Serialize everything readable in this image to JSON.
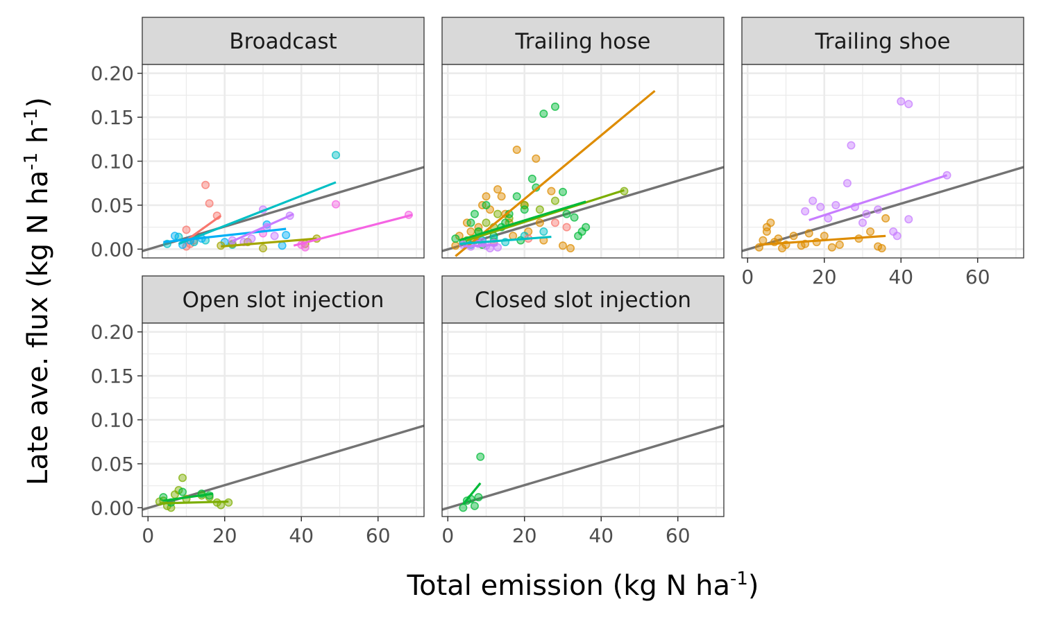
{
  "chart_data": {
    "type": "scatter",
    "xlabel": "Total emission (kg N ha-1)",
    "ylabel": "Late ave. flux (kg N ha-1 h-1)",
    "xlabel_parts": {
      "main": "Total emission (kg N ha",
      "sup": "-1",
      "close": ")"
    },
    "ylabel_parts": {
      "main": "Late ave. flux (kg N ha",
      "sup1": "-1",
      "mid": " h",
      "sup2": "-1",
      "close": ")"
    },
    "xlim": [
      -1.5,
      72
    ],
    "ylim": [
      -0.01,
      0.21
    ],
    "xticks": [
      0,
      20,
      40,
      60
    ],
    "xtick_labels": [
      "0",
      "20",
      "40",
      "60"
    ],
    "yticks": [
      0,
      0.05,
      0.1,
      0.15,
      0.2
    ],
    "ytick_labels": [
      "0.00",
      "0.05",
      "0.10",
      "0.15",
      "0.20"
    ],
    "grid": true,
    "reference_line": {
      "intercept": -0.0003,
      "slope": 0.0013,
      "color": "#737373"
    },
    "colors": {
      "red": "#F8766D",
      "orange": "#DE8C00",
      "olive": "#A3A500",
      "lime": "#7CAE00",
      "green": "#00BA38",
      "teal": "#00BFC4",
      "blue": "#00B0F6",
      "violet": "#C77CFF",
      "pink": "#F564E3"
    },
    "panels": [
      {
        "title": "Broadcast",
        "series": [
          {
            "color": "red",
            "points": [
              [
                10,
                0.022
              ],
              [
                15,
                0.073
              ],
              [
                16,
                0.052
              ],
              [
                18,
                0.038
              ],
              [
                11,
                0.006
              ],
              [
                10,
                0.003
              ],
              [
                12,
                0.01
              ]
            ],
            "fit": [
              [
                10,
                0.01
              ],
              [
                19,
                0.038
              ]
            ]
          },
          {
            "color": "teal",
            "points": [
              [
                5,
                0.006
              ],
              [
                8,
                0.014
              ],
              [
                12,
                0.008
              ],
              [
                15,
                0.01
              ],
              [
                22,
                0.005
              ],
              [
                49,
                0.107
              ]
            ],
            "fit": [
              [
                8,
                0.006
              ],
              [
                49,
                0.076
              ]
            ]
          },
          {
            "color": "blue",
            "points": [
              [
                7,
                0.015
              ],
              [
                9,
                0.005
              ],
              [
                14,
                0.012
              ],
              [
                20,
                0.008
              ],
              [
                31,
                0.028
              ],
              [
                35,
                0.004
              ],
              [
                36,
                0.016
              ],
              [
                11,
                0.01
              ]
            ],
            "fit": [
              [
                4,
                0.008
              ],
              [
                36,
                0.023
              ]
            ]
          },
          {
            "color": "olive",
            "points": [
              [
                19,
                0.004
              ],
              [
                22,
                0.006
              ],
              [
                26,
                0.008
              ],
              [
                30,
                0.001
              ],
              [
                41,
                0.006
              ],
              [
                44,
                0.012
              ]
            ],
            "fit": [
              [
                19,
                0.003
              ],
              [
                44,
                0.012
              ]
            ]
          },
          {
            "color": "violet",
            "points": [
              [
                22,
                0.01
              ],
              [
                27,
                0.012
              ],
              [
                30,
                0.045
              ],
              [
                31,
                0.025
              ],
              [
                33,
                0.015
              ],
              [
                37,
                0.038
              ],
              [
                25,
                0.008
              ]
            ],
            "fit": [
              [
                22,
                0.009
              ],
              [
                38,
                0.04
              ]
            ]
          },
          {
            "color": "pink",
            "points": [
              [
                30,
                0.018
              ],
              [
                40,
                0.005
              ],
              [
                41,
                0.002
              ],
              [
                49,
                0.051
              ],
              [
                68,
                0.039
              ]
            ],
            "fit": [
              [
                38,
                0.004
              ],
              [
                69,
                0.039
              ]
            ]
          }
        ]
      },
      {
        "title": "Trailing hose",
        "series": [
          {
            "color": "orange",
            "points": [
              [
                2,
                0.004
              ],
              [
                3,
                0.015
              ],
              [
                5,
                0.03
              ],
              [
                6,
                0.02
              ],
              [
                7,
                0.01
              ],
              [
                8,
                0.025
              ],
              [
                9,
                0.05
              ],
              [
                10,
                0.06
              ],
              [
                11,
                0.045
              ],
              [
                13,
                0.068
              ],
              [
                14,
                0.06
              ],
              [
                15,
                0.04
              ],
              [
                16,
                0.03
              ],
              [
                18,
                0.113
              ],
              [
                20,
                0.05
              ],
              [
                21,
                0.02
              ],
              [
                23,
                0.103
              ],
              [
                24,
                0.03
              ],
              [
                25,
                0.01
              ],
              [
                27,
                0.066
              ],
              [
                30,
                0.004
              ],
              [
                32,
                0.001
              ],
              [
                12,
                0.008
              ],
              [
                17,
                0.015
              ]
            ],
            "fit": [
              [
                2,
                -0.008
              ],
              [
                54,
                0.18
              ]
            ]
          },
          {
            "color": "lime",
            "points": [
              [
                5,
                0.01
              ],
              [
                8,
                0.02
              ],
              [
                10,
                0.03
              ],
              [
                13,
                0.04
              ],
              [
                16,
                0.035
              ],
              [
                20,
                0.05
              ],
              [
                24,
                0.045
              ],
              [
                28,
                0.055
              ],
              [
                46,
                0.066
              ],
              [
                12,
                0.025
              ]
            ],
            "fit": [
              [
                5,
                0.01
              ],
              [
                46,
                0.067
              ]
            ]
          },
          {
            "color": "green",
            "points": [
              [
                2,
                0.012
              ],
              [
                4,
                0.008
              ],
              [
                6,
                0.03
              ],
              [
                8,
                0.02
              ],
              [
                10,
                0.05
              ],
              [
                12,
                0.015
              ],
              [
                14,
                0.025
              ],
              [
                15,
                0.03
              ],
              [
                16,
                0.04
              ],
              [
                18,
                0.06
              ],
              [
                20,
                0.045
              ],
              [
                22,
                0.08
              ],
              [
                23,
                0.07
              ],
              [
                25,
                0.154
              ],
              [
                28,
                0.162
              ],
              [
                30,
                0.065
              ],
              [
                31,
                0.04
              ],
              [
                33,
                0.036
              ],
              [
                34,
                0.015
              ],
              [
                35,
                0.02
              ],
              [
                36,
                0.025
              ],
              [
                9,
                0.005
              ],
              [
                7,
                0.04
              ],
              [
                19,
                0.01
              ]
            ],
            "fit": [
              [
                3,
                0.01
              ],
              [
                36,
                0.054
              ]
            ]
          },
          {
            "color": "teal",
            "points": [
              [
                6,
                0.005
              ],
              [
                9,
                0.01
              ],
              [
                12,
                0.012
              ],
              [
                15,
                0.008
              ],
              [
                20,
                0.015
              ],
              [
                25,
                0.02
              ]
            ],
            "fit": [
              [
                3,
                0.006
              ],
              [
                27,
                0.014
              ]
            ]
          },
          {
            "color": "violet",
            "points": [
              [
                4,
                0.005
              ],
              [
                6,
                0.003
              ],
              [
                8,
                0.006
              ],
              [
                10,
                0.004
              ],
              [
                12,
                0.007
              ],
              [
                13,
                0.002
              ],
              [
                11,
                0.001
              ],
              [
                9,
                0.008
              ]
            ],
            "fit": [
              [
                4,
                0.003
              ],
              [
                13,
                0.005
              ]
            ]
          },
          {
            "color": "red",
            "points": [
              [
                21,
                0.012
              ],
              [
                28,
                0.03
              ],
              [
                31,
                0.025
              ]
            ],
            "fit": null
          }
        ]
      },
      {
        "title": "Trailing shoe",
        "series": [
          {
            "color": "orange",
            "points": [
              [
                3,
                0.002
              ],
              [
                4,
                0.01
              ],
              [
                5,
                0.02
              ],
              [
                6,
                0.03
              ],
              [
                7,
                0.008
              ],
              [
                8,
                0.012
              ],
              [
                10,
                0.005
              ],
              [
                12,
                0.015
              ],
              [
                14,
                0.004
              ],
              [
                16,
                0.018
              ],
              [
                18,
                0.008
              ],
              [
                20,
                0.015
              ],
              [
                22,
                0.002
              ],
              [
                24,
                0.005
              ],
              [
                29,
                0.012
              ],
              [
                32,
                0.02
              ],
              [
                34,
                0.003
              ],
              [
                35,
                0.001
              ],
              [
                36,
                0.035
              ],
              [
                9,
                0.001
              ],
              [
                5,
                0.025
              ],
              [
                15,
                0.006
              ]
            ],
            "fit": [
              [
                3,
                0.005
              ],
              [
                36,
                0.015
              ]
            ]
          },
          {
            "color": "violet",
            "points": [
              [
                15,
                0.043
              ],
              [
                17,
                0.055
              ],
              [
                19,
                0.048
              ],
              [
                21,
                0.035
              ],
              [
                23,
                0.05
              ],
              [
                26,
                0.075
              ],
              [
                27,
                0.118
              ],
              [
                28,
                0.048
              ],
              [
                30,
                0.03
              ],
              [
                31,
                0.04
              ],
              [
                34,
                0.045
              ],
              [
                38,
                0.02
              ],
              [
                39,
                0.015
              ],
              [
                40,
                0.168
              ],
              [
                42,
                0.165
              ],
              [
                42,
                0.034
              ],
              [
                52,
                0.084
              ]
            ],
            "fit": [
              [
                16,
                0.033
              ],
              [
                52,
                0.084
              ]
            ]
          }
        ]
      },
      {
        "title": "Open slot injection",
        "series": [
          {
            "color": "lime",
            "points": [
              [
                3,
                0.007
              ],
              [
                4,
                0.008
              ],
              [
                5,
                0.002
              ],
              [
                6,
                0.0
              ],
              [
                7,
                0.015
              ],
              [
                8,
                0.02
              ],
              [
                9,
                0.034
              ],
              [
                10,
                0.01
              ],
              [
                14,
                0.014
              ],
              [
                16,
                0.012
              ],
              [
                18,
                0.006
              ],
              [
                19,
                0.003
              ],
              [
                21,
                0.006
              ]
            ],
            "fit": [
              [
                3,
                0.005
              ],
              [
                21,
                0.007
              ]
            ]
          },
          {
            "color": "green",
            "points": [
              [
                4,
                0.012
              ],
              [
                6,
                0.006
              ],
              [
                9,
                0.018
              ],
              [
                14,
                0.016
              ],
              [
                16,
                0.014
              ]
            ],
            "fit": [
              [
                4,
                0.008
              ],
              [
                17,
                0.016
              ]
            ]
          }
        ]
      },
      {
        "title": "Closed slot injection",
        "series": [
          {
            "color": "green",
            "points": [
              [
                4,
                0.0
              ],
              [
                5,
                0.008
              ],
              [
                6,
                0.01
              ],
              [
                7,
                0.002
              ],
              [
                8,
                0.012
              ],
              [
                8.5,
                0.058
              ]
            ],
            "fit": [
              [
                4,
                0.004
              ],
              [
                8.5,
                0.028
              ]
            ]
          }
        ]
      }
    ]
  }
}
